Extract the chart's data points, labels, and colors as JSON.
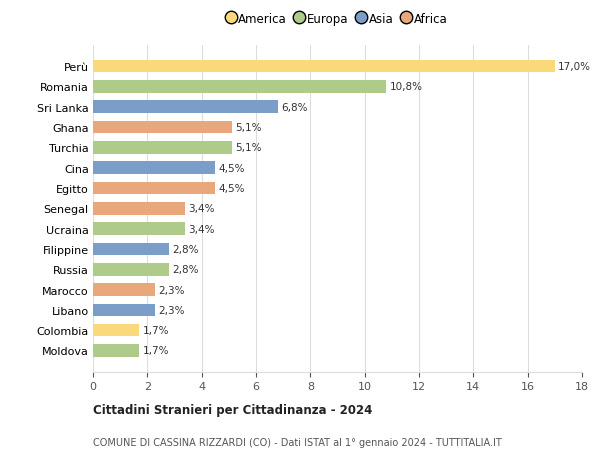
{
  "categories": [
    "Perù",
    "Romania",
    "Sri Lanka",
    "Ghana",
    "Turchia",
    "Cina",
    "Egitto",
    "Senegal",
    "Ucraina",
    "Filippine",
    "Russia",
    "Marocco",
    "Libano",
    "Colombia",
    "Moldova"
  ],
  "values": [
    17.0,
    10.8,
    6.8,
    5.1,
    5.1,
    4.5,
    4.5,
    3.4,
    3.4,
    2.8,
    2.8,
    2.3,
    2.3,
    1.7,
    1.7
  ],
  "continents": [
    "America",
    "Europa",
    "Asia",
    "Africa",
    "Europa",
    "Asia",
    "Africa",
    "Africa",
    "Europa",
    "Asia",
    "Europa",
    "Africa",
    "Asia",
    "America",
    "Europa"
  ],
  "colors": {
    "America": "#F9D97A",
    "Europa": "#AECB8A",
    "Asia": "#7B9EC9",
    "Africa": "#E8A87C"
  },
  "legend_order": [
    "America",
    "Europa",
    "Asia",
    "Africa"
  ],
  "title1": "Cittadini Stranieri per Cittadinanza - 2024",
  "title2": "COMUNE DI CASSINA RIZZARDI (CO) - Dati ISTAT al 1° gennaio 2024 - TUTTITALIA.IT",
  "xlim": [
    0,
    18
  ],
  "xticks": [
    0,
    2,
    4,
    6,
    8,
    10,
    12,
    14,
    16,
    18
  ],
  "background_color": "#ffffff",
  "grid_color": "#dddddd"
}
